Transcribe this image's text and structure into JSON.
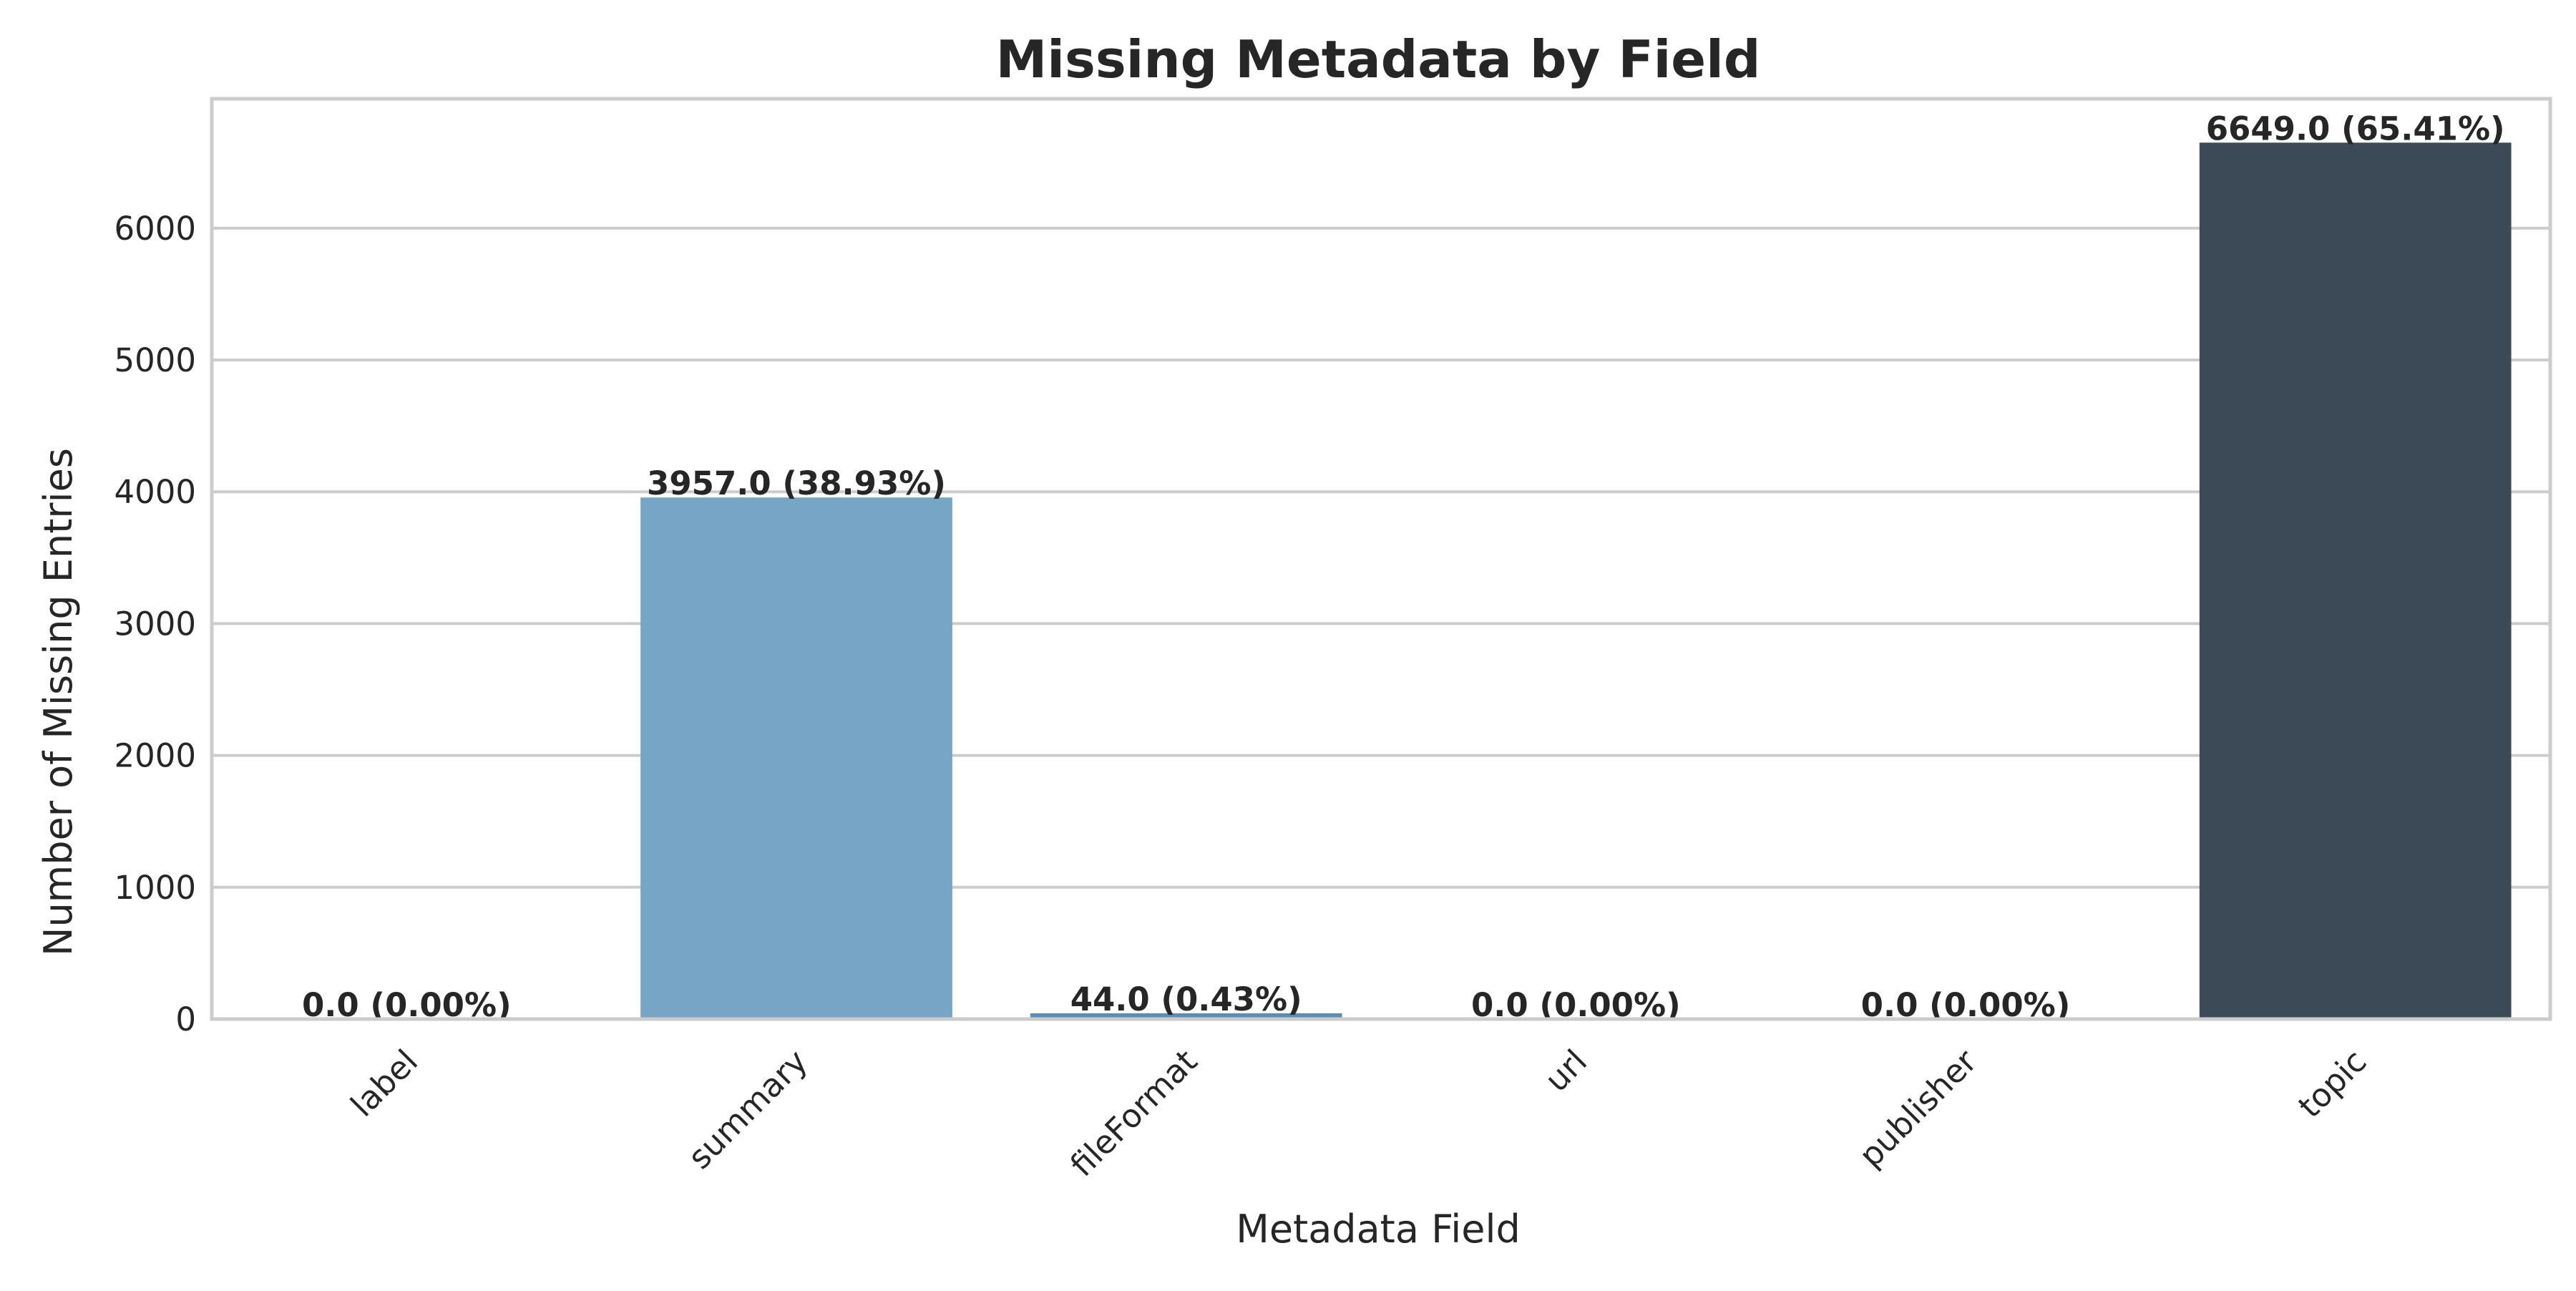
{
  "chart_data": {
    "type": "bar",
    "title": "Missing Metadata by Field",
    "xlabel": "Metadata Field",
    "ylabel": "Number of Missing Entries",
    "categories": [
      "label",
      "summary",
      "fileFormat",
      "url",
      "publisher",
      "topic"
    ],
    "values": [
      0.0,
      3957.0,
      44.0,
      0.0,
      0.0,
      6649.0
    ],
    "data_labels": [
      "0.0 (0.00%)",
      "3957.0 (38.93%)",
      "44.0 (0.43%)",
      "0.0 (0.00%)",
      "0.0 (0.00%)",
      "6649.0 (65.41%)"
    ],
    "bar_colors": [
      "#a6c8e0",
      "#77a5c5",
      "#5b8db5",
      "#4f7a9c",
      "#456580",
      "#3c4a58"
    ],
    "y_ticks": [
      0,
      1000,
      2000,
      3000,
      4000,
      5000,
      6000
    ],
    "ylim": [
      0,
      6982
    ],
    "grid": "horizontal",
    "legend": "none"
  }
}
